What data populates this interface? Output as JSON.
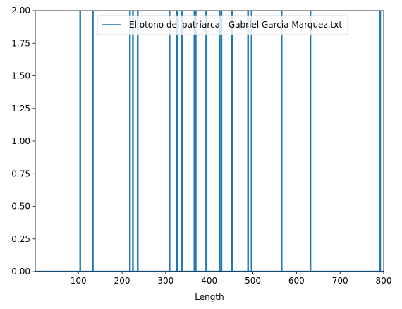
{
  "chart_data": {
    "type": "line",
    "title": "",
    "xlabel": "Length",
    "ylabel": "",
    "xlim": [
      1,
      800
    ],
    "ylim": [
      0,
      2
    ],
    "x_ticks": [
      100,
      200,
      300,
      400,
      500,
      600,
      700,
      800
    ],
    "x_tick_labels": [
      "100",
      "200",
      "300",
      "400",
      "500",
      "600",
      "700",
      "800"
    ],
    "y_ticks": [
      0,
      0.25,
      0.5,
      0.75,
      1.0,
      1.25,
      1.5,
      1.75,
      2.0
    ],
    "y_tick_labels": [
      "0.00",
      "0.25",
      "0.50",
      "0.75",
      "1.00",
      "1.25",
      "1.50",
      "1.75",
      "2.00"
    ],
    "grid": false,
    "legend_position": "top-right",
    "series": [
      {
        "name": "El otono del patriarca - Gabriel Garcia Marquez.txt",
        "color": "#1f77b4",
        "spike_x": [
          104,
          133,
          218,
          225,
          236,
          309,
          326,
          337,
          366,
          369,
          393,
          424,
          428,
          452,
          489,
          497,
          566,
          632,
          792
        ],
        "baseline": 0
      }
    ]
  }
}
